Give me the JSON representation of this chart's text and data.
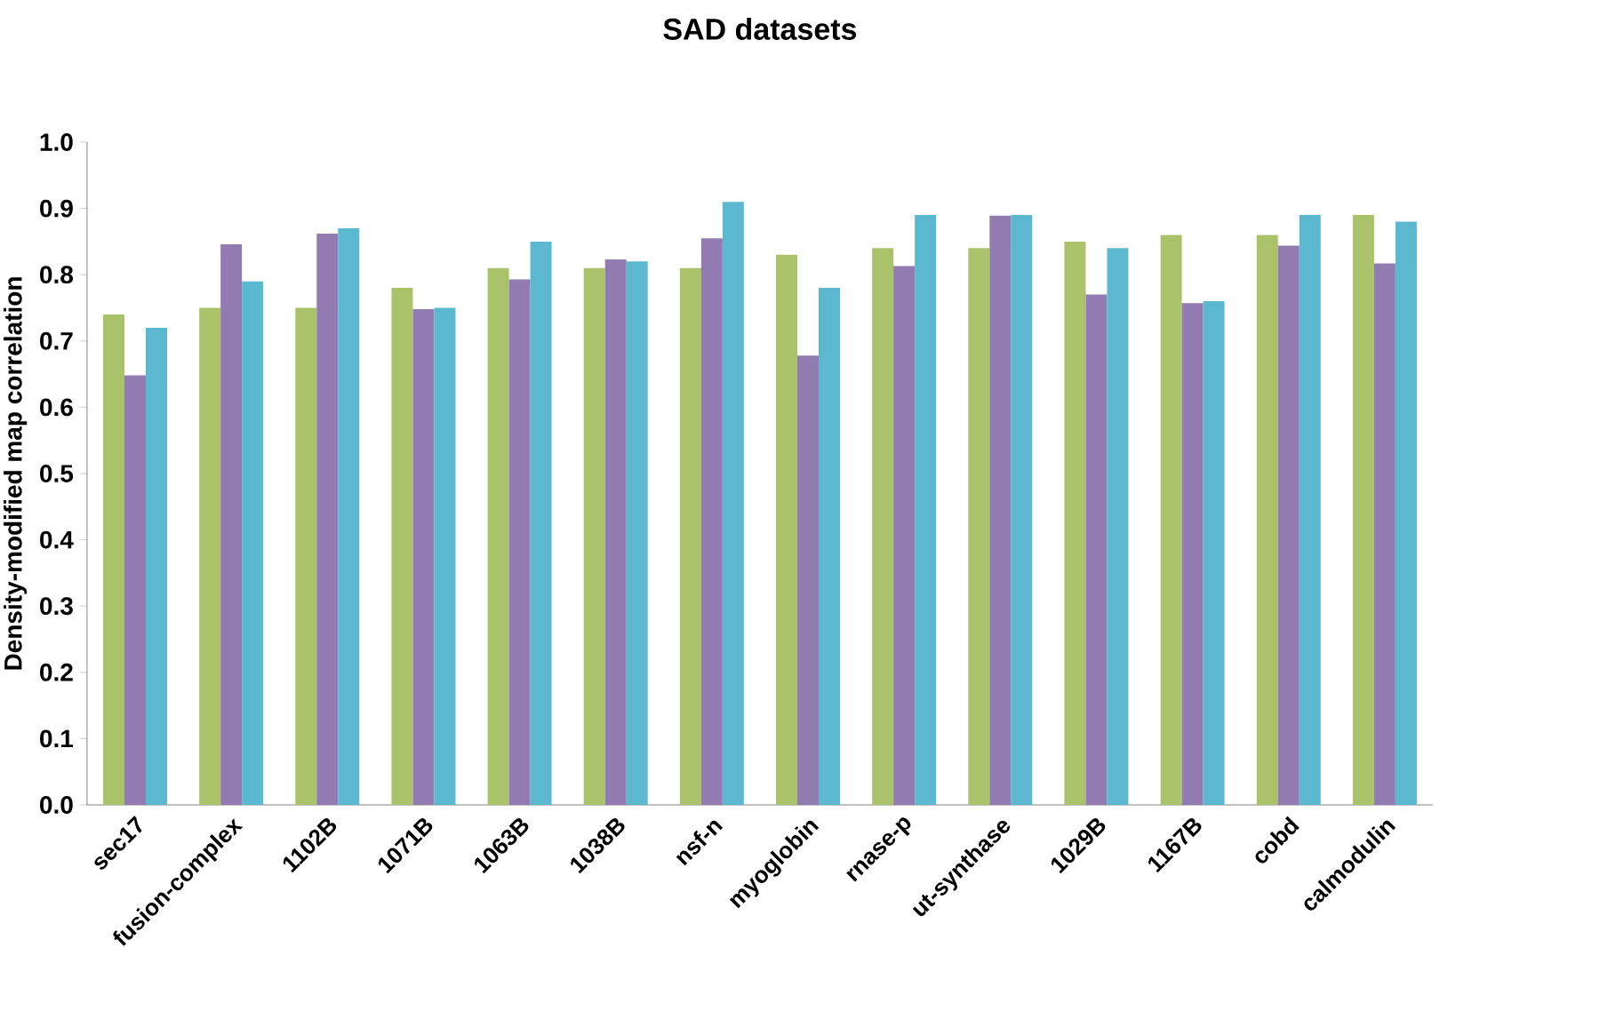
{
  "chart_data": {
    "type": "bar",
    "title": "SAD datasets",
    "ylabel": "Density-modified map correlation",
    "categories": [
      "sec17",
      "fusion-complex",
      "1102B",
      "1071B",
      "1063B",
      "1038B",
      "nsf-n",
      "myoglobin",
      "rnase-p",
      "ut-synthase",
      "1029B",
      "1167B",
      "cobd",
      "calmodulin"
    ],
    "series": [
      {
        "color": "#aac36b",
        "values": [
          0.74,
          0.75,
          0.75,
          0.78,
          0.81,
          0.81,
          0.81,
          0.83,
          0.84,
          0.84,
          0.85,
          0.86,
          0.86,
          0.89
        ]
      },
      {
        "color": "#917bb0",
        "values": [
          0.648,
          0.846,
          0.862,
          0.748,
          0.793,
          0.823,
          0.855,
          0.678,
          0.813,
          0.889,
          0.77,
          0.757,
          0.844,
          0.817
        ]
      },
      {
        "color": "#5bb8cf",
        "values": [
          0.72,
          0.79,
          0.87,
          0.75,
          0.85,
          0.82,
          0.91,
          0.78,
          0.89,
          0.89,
          0.84,
          0.76,
          0.89,
          0.88
        ]
      }
    ],
    "ylim": [
      0,
      1
    ],
    "yticks": [
      "0.0",
      0.1,
      0.2,
      0.3,
      0.4,
      0.5,
      0.6,
      0.7,
      0.8,
      0.9,
      "1.0"
    ],
    "grid": false
  }
}
